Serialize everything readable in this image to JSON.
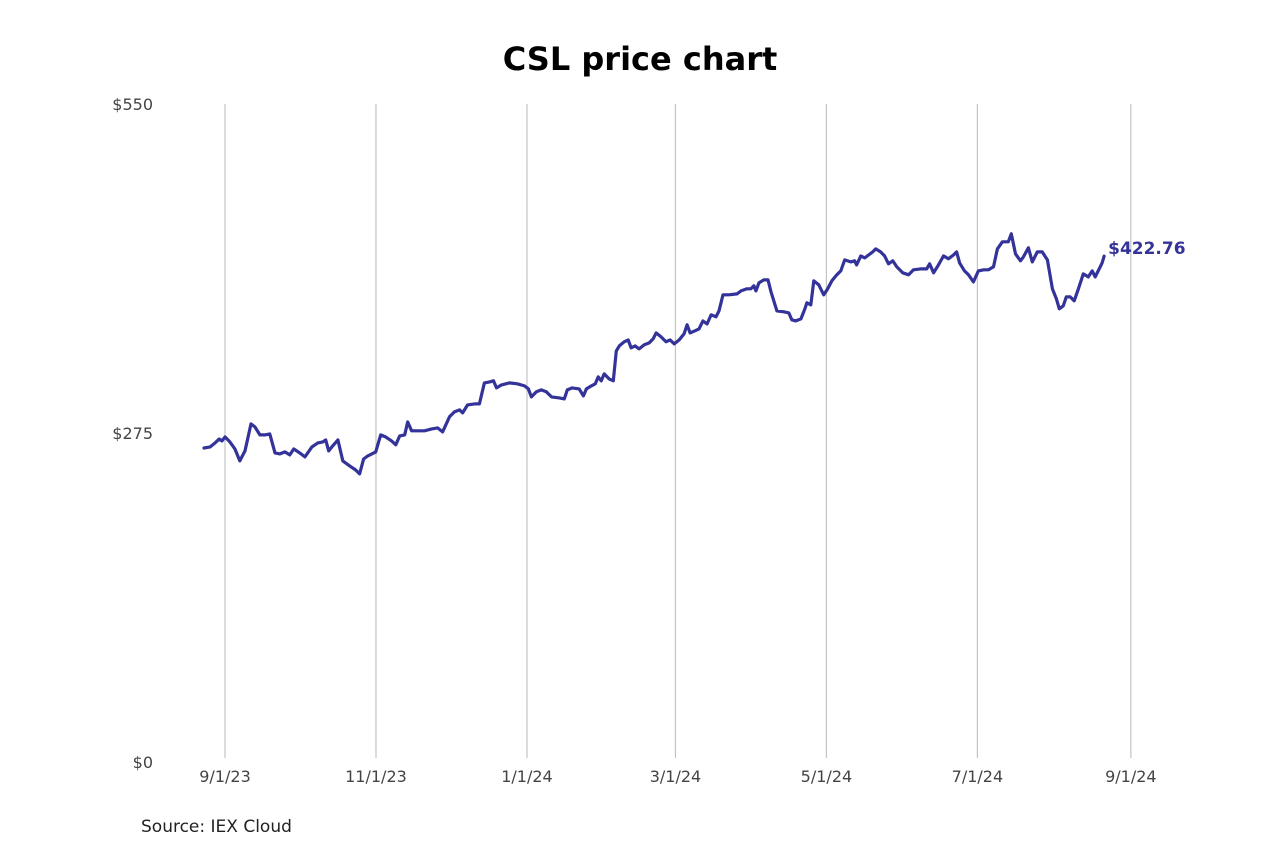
{
  "chart_data": {
    "type": "line",
    "title": "CSL price chart",
    "source": "Source: IEX Cloud",
    "xlabel": "",
    "ylabel": "",
    "ylim": [
      0,
      550
    ],
    "y_ticks": [
      {
        "value": 0,
        "label": "$0"
      },
      {
        "value": 275,
        "label": "$275"
      },
      {
        "value": 550,
        "label": "$550"
      }
    ],
    "x_unit": "days since 9/1/23",
    "xlim": [
      -10,
      385
    ],
    "x_ticks": [
      {
        "value": 0,
        "label": "9/1/23"
      },
      {
        "value": 61,
        "label": "11/1/23"
      },
      {
        "value": 122,
        "label": "1/1/24"
      },
      {
        "value": 182,
        "label": "3/1/24"
      },
      {
        "value": 243,
        "label": "5/1/24"
      },
      {
        "value": 304,
        "label": "7/1/24"
      },
      {
        "value": 366,
        "label": "9/1/24"
      }
    ],
    "grid": "vertical",
    "line_color": "#333399",
    "end_label": "$422.76",
    "series": [
      {
        "name": "CSL",
        "points": [
          [
            -8.5,
            262.5
          ],
          [
            -6,
            263.4
          ],
          [
            -4,
            266.7
          ],
          [
            -2.4,
            270
          ],
          [
            -1.2,
            268.4
          ],
          [
            0,
            271.7
          ],
          [
            2,
            267.6
          ],
          [
            4,
            261.7
          ],
          [
            6,
            251.7
          ],
          [
            8.1,
            260
          ],
          [
            10.5,
            282.6
          ],
          [
            12.1,
            280.1
          ],
          [
            14.1,
            273.4
          ],
          [
            16.1,
            273.4
          ],
          [
            18.1,
            274.2
          ],
          [
            20.2,
            258.4
          ],
          [
            22.2,
            257.5
          ],
          [
            24.2,
            259.2
          ],
          [
            26.2,
            256.7
          ],
          [
            27.8,
            261.7
          ],
          [
            30.2,
            258.4
          ],
          [
            32.3,
            255
          ],
          [
            35.1,
            263.4
          ],
          [
            37.5,
            266.7
          ],
          [
            39.5,
            267.6
          ],
          [
            40.7,
            269.2
          ],
          [
            41.9,
            260
          ],
          [
            43.5,
            264.2
          ],
          [
            45.6,
            269.2
          ],
          [
            47.6,
            251.7
          ],
          [
            50.4,
            247.5
          ],
          [
            52.8,
            244.1
          ],
          [
            54.4,
            240.8
          ],
          [
            56,
            253.3
          ],
          [
            57.7,
            255.9
          ],
          [
            59.3,
            257.5
          ],
          [
            60.9,
            259.2
          ],
          [
            62.9,
            273.4
          ],
          [
            64.9,
            271.7
          ],
          [
            67.3,
            268.4
          ],
          [
            69,
            265.1
          ],
          [
            70.6,
            272.6
          ],
          [
            72.6,
            273.4
          ],
          [
            73.8,
            284.3
          ],
          [
            75.4,
            276.8
          ],
          [
            77.8,
            276.8
          ],
          [
            80.6,
            276.8
          ],
          [
            83.5,
            278.4
          ],
          [
            85.9,
            279.3
          ],
          [
            87.9,
            275.9
          ],
          [
            90.7,
            288.5
          ],
          [
            92.7,
            292.6
          ],
          [
            94.8,
            294.3
          ],
          [
            96,
            291.8
          ],
          [
            98,
            298.5
          ],
          [
            100.8,
            299.3
          ],
          [
            102.8,
            299.3
          ],
          [
            104.8,
            316.9
          ],
          [
            106.9,
            317.7
          ],
          [
            108.5,
            318.6
          ],
          [
            109.7,
            312.7
          ],
          [
            111.7,
            315.2
          ],
          [
            114.9,
            316.9
          ],
          [
            118.1,
            316.1
          ],
          [
            121,
            314.4
          ],
          [
            122.6,
            311.9
          ],
          [
            123.8,
            305.2
          ],
          [
            125.8,
            309.4
          ],
          [
            127.8,
            311
          ],
          [
            129.8,
            309.4
          ],
          [
            131.9,
            305.2
          ],
          [
            135.1,
            304.3
          ],
          [
            137.1,
            303.5
          ],
          [
            138.3,
            311
          ],
          [
            140.3,
            312.7
          ],
          [
            143.1,
            311.9
          ],
          [
            144.8,
            306
          ],
          [
            146,
            311.9
          ],
          [
            148,
            314.4
          ],
          [
            149.6,
            316.1
          ],
          [
            150.8,
            321.9
          ],
          [
            152,
            318.6
          ],
          [
            153.2,
            324.4
          ],
          [
            155.2,
            320.2
          ],
          [
            156.9,
            318.6
          ],
          [
            158.1,
            343.6
          ],
          [
            159.3,
            347.8
          ],
          [
            161.3,
            351.2
          ],
          [
            162.9,
            352.8
          ],
          [
            164.1,
            346.2
          ],
          [
            165.7,
            347.8
          ],
          [
            167.3,
            345.3
          ],
          [
            169.4,
            348.7
          ],
          [
            171.4,
            350.3
          ],
          [
            173,
            353.7
          ],
          [
            174.2,
            358.7
          ],
          [
            176.2,
            355.3
          ],
          [
            178.2,
            351.2
          ],
          [
            179.8,
            352.8
          ],
          [
            181.5,
            349.5
          ],
          [
            183.5,
            352.8
          ],
          [
            185.5,
            357.9
          ],
          [
            186.7,
            365.4
          ],
          [
            187.9,
            358.7
          ],
          [
            189.9,
            360.4
          ],
          [
            191.5,
            362
          ],
          [
            193.1,
            368.7
          ],
          [
            194.8,
            366.2
          ],
          [
            196.4,
            373.7
          ],
          [
            198.4,
            372.1
          ],
          [
            199.6,
            377.1
          ],
          [
            201.2,
            390.5
          ],
          [
            203.6,
            390.5
          ],
          [
            206.9,
            391.3
          ],
          [
            208.5,
            393.8
          ],
          [
            210.9,
            395.5
          ],
          [
            212.5,
            395.5
          ],
          [
            213.7,
            398
          ],
          [
            214.5,
            393.8
          ],
          [
            215.7,
            400.5
          ],
          [
            217.7,
            403
          ],
          [
            219.4,
            403
          ],
          [
            220.6,
            393
          ],
          [
            223,
            377.1
          ],
          [
            225.8,
            376.3
          ],
          [
            227.8,
            375.4
          ],
          [
            229,
            369.6
          ],
          [
            230.6,
            368.7
          ],
          [
            232.7,
            370.4
          ],
          [
            234.3,
            378.8
          ],
          [
            235.1,
            383.8
          ],
          [
            236.7,
            382.1
          ],
          [
            237.9,
            402.2
          ],
          [
            239.9,
            398.8
          ],
          [
            241.9,
            390.5
          ],
          [
            243.5,
            395.5
          ],
          [
            245.2,
            402.2
          ],
          [
            247.2,
            407.2
          ],
          [
            248.8,
            410.5
          ],
          [
            250.4,
            419.7
          ],
          [
            252.8,
            418
          ],
          [
            254.4,
            418.9
          ],
          [
            255.2,
            415.5
          ],
          [
            256.9,
            423
          ],
          [
            258.5,
            421.4
          ],
          [
            260.1,
            423.9
          ],
          [
            261.7,
            426.4
          ],
          [
            262.9,
            428.9
          ],
          [
            264.9,
            426.4
          ],
          [
            266.5,
            423
          ],
          [
            268.1,
            416.4
          ],
          [
            269.8,
            418.9
          ],
          [
            271.4,
            413.9
          ],
          [
            273.8,
            408.9
          ],
          [
            276.2,
            407.2
          ],
          [
            278.2,
            411.4
          ],
          [
            281,
            412.2
          ],
          [
            283.5,
            412.2
          ],
          [
            284.7,
            416.4
          ],
          [
            286.3,
            408.9
          ],
          [
            288.3,
            415.5
          ],
          [
            290.3,
            423
          ],
          [
            292.3,
            420.6
          ],
          [
            294.4,
            423.9
          ],
          [
            295.6,
            426.4
          ],
          [
            296.8,
            417.2
          ],
          [
            298.8,
            410.5
          ],
          [
            300.4,
            407.2
          ],
          [
            302.4,
            401.3
          ],
          [
            304.4,
            410.5
          ],
          [
            306.5,
            411.4
          ],
          [
            308.5,
            411.4
          ],
          [
            310.5,
            413.9
          ],
          [
            312.1,
            428.9
          ],
          [
            314.1,
            434.8
          ],
          [
            316.5,
            434.8
          ],
          [
            317.7,
            441.5
          ],
          [
            319.4,
            424.7
          ],
          [
            321.4,
            418.9
          ],
          [
            322.6,
            422.2
          ],
          [
            324.6,
            429.8
          ],
          [
            326.2,
            418
          ],
          [
            328.2,
            426.4
          ],
          [
            330.2,
            426.4
          ],
          [
            332.3,
            419.7
          ],
          [
            334.3,
            395.5
          ],
          [
            335.9,
            387.1
          ],
          [
            337.1,
            378.8
          ],
          [
            338.7,
            381.3
          ],
          [
            339.9,
            388.8
          ],
          [
            341.5,
            388.8
          ],
          [
            343.1,
            385.5
          ],
          [
            344.8,
            395.5
          ],
          [
            346.8,
            408
          ],
          [
            348.8,
            405.5
          ],
          [
            350.4,
            410.5
          ],
          [
            351.6,
            405.5
          ],
          [
            353.2,
            412.2
          ],
          [
            354.4,
            417.2
          ],
          [
            355.2,
            422.76
          ]
        ]
      }
    ]
  }
}
